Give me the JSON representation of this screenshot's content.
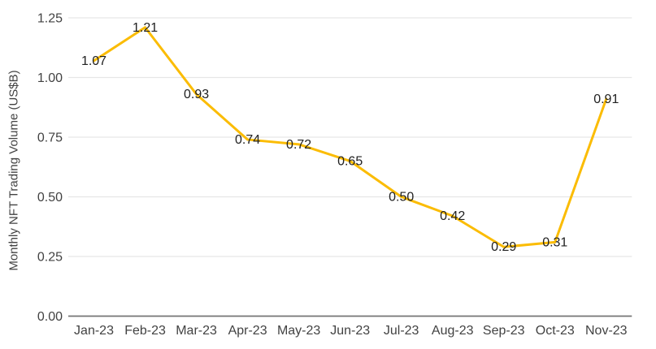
{
  "chart_data": {
    "type": "line",
    "title": "",
    "xlabel": "",
    "ylabel": "Monthly NFT Trading Volume (US$B)",
    "categories": [
      "Jan-23",
      "Feb-23",
      "Mar-23",
      "Apr-23",
      "May-23",
      "Jun-23",
      "Jul-23",
      "Aug-23",
      "Sep-23",
      "Oct-23",
      "Nov-23"
    ],
    "series": [
      {
        "name": "Monthly NFT Trading Volume",
        "values": [
          1.07,
          1.21,
          0.93,
          0.74,
          0.72,
          0.65,
          0.5,
          0.42,
          0.29,
          0.31,
          0.91
        ],
        "data_labels": [
          "1.07",
          "1.21",
          "0.93",
          "0.74",
          "0.72",
          "0.65",
          "0.50",
          "0.42",
          "0.29",
          "0.31",
          "0.91"
        ]
      }
    ],
    "y_ticks": [
      {
        "value": 0.0,
        "label": "0.00"
      },
      {
        "value": 0.25,
        "label": "0.25"
      },
      {
        "value": 0.5,
        "label": "0.50"
      },
      {
        "value": 0.75,
        "label": "0.75"
      },
      {
        "value": 1.0,
        "label": "1.00"
      },
      {
        "value": 1.25,
        "label": "1.25"
      }
    ],
    "ylim": [
      0,
      1.25
    ],
    "grid": true,
    "legend": "none",
    "colors": {
      "line": "#FBBC04",
      "gridline": "#E6E6E6",
      "axis_line": "#757575",
      "tick_text": "#424242",
      "data_label_text": "#212121",
      "background": "#FFFFFF"
    }
  }
}
